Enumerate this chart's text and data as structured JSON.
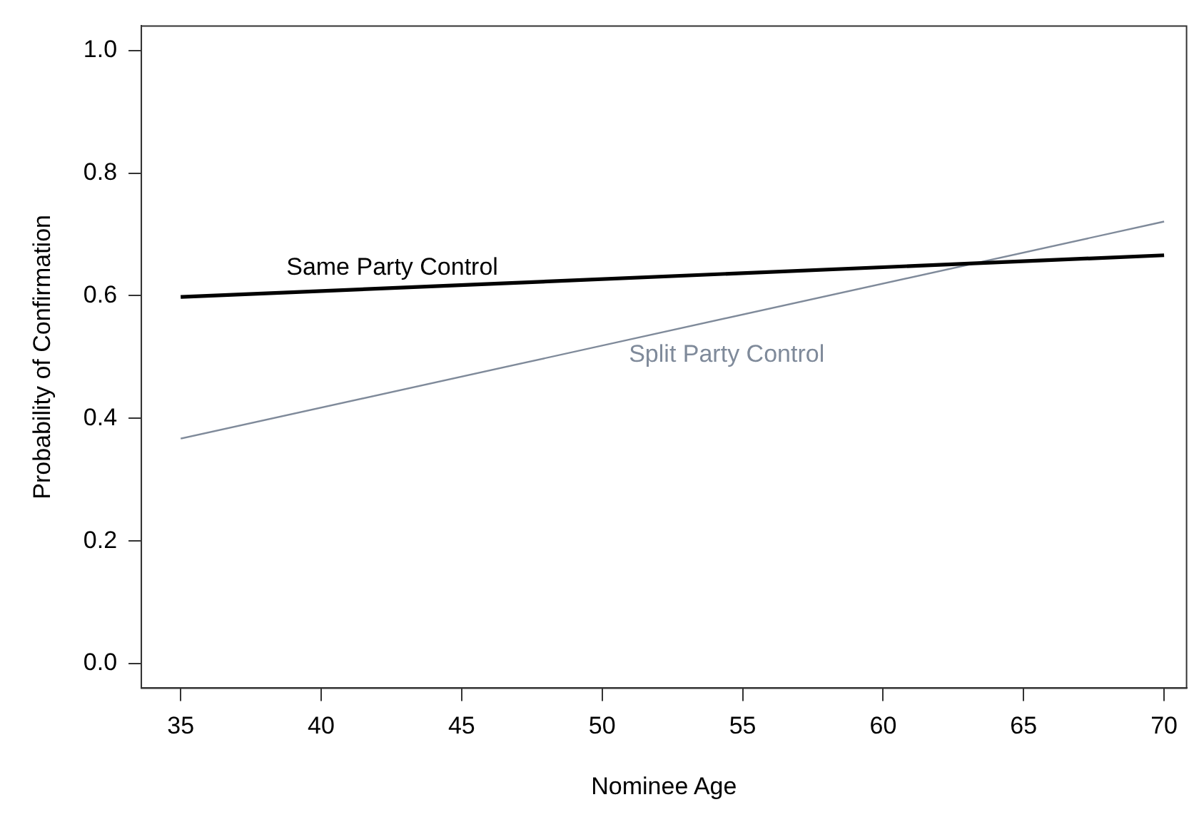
{
  "chart_data": {
    "type": "line",
    "xlabel": "Nominee Age",
    "ylabel": "Probability of Confirmation",
    "xlim": [
      33.6,
      70.8
    ],
    "ylim": [
      -0.04,
      1.04
    ],
    "xticks": [
      35,
      40,
      45,
      50,
      55,
      60,
      65,
      70
    ],
    "yticks": [
      {
        "value": 0,
        "label": "0.0"
      },
      0.2,
      0.4,
      0.6,
      0.8,
      {
        "value": 1,
        "label": "1.0"
      }
    ],
    "x": [
      35,
      70
    ],
    "series": [
      {
        "name": "Same Party Control",
        "color": "#000000",
        "values": [
          0.598,
          0.666
        ]
      },
      {
        "name": "Split Party Control",
        "color": "#7f8a9a",
        "values": [
          0.367,
          0.721
        ]
      }
    ],
    "legend": false,
    "marker": "none",
    "line_style": "solid"
  }
}
